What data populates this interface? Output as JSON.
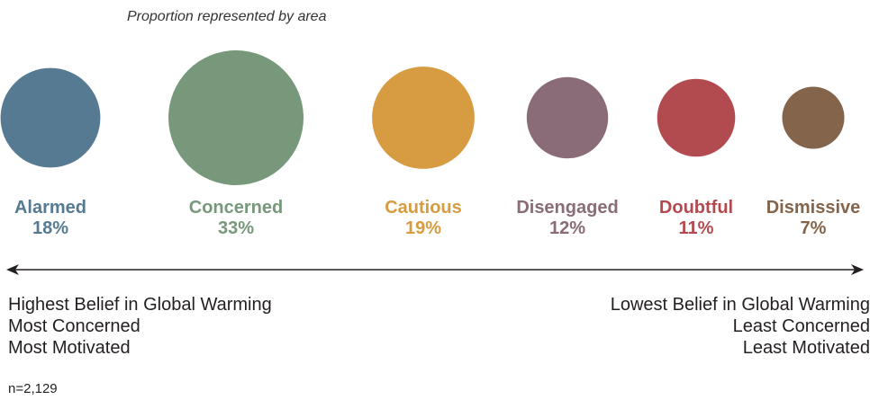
{
  "note": "Proportion represented by area",
  "chart_data": {
    "type": "bubble",
    "categories": [
      "Alarmed",
      "Concerned",
      "Cautious",
      "Disengaged",
      "Doubtful",
      "Dismissive"
    ],
    "values": [
      18,
      33,
      19,
      12,
      11,
      7
    ],
    "value_suffix": "%",
    "colors": [
      "#557a92",
      "#77987a",
      "#d79b41",
      "#8a6b78",
      "#b24b4f",
      "#84644a"
    ]
  },
  "scale": {
    "left": [
      "Highest Belief in Global Warming",
      "Most Concerned",
      "Most Motivated"
    ],
    "right": [
      "Lowest Belief in Global Warming",
      "Least Concerned",
      "Least Motivated"
    ]
  },
  "sample_size": "n=2,129"
}
